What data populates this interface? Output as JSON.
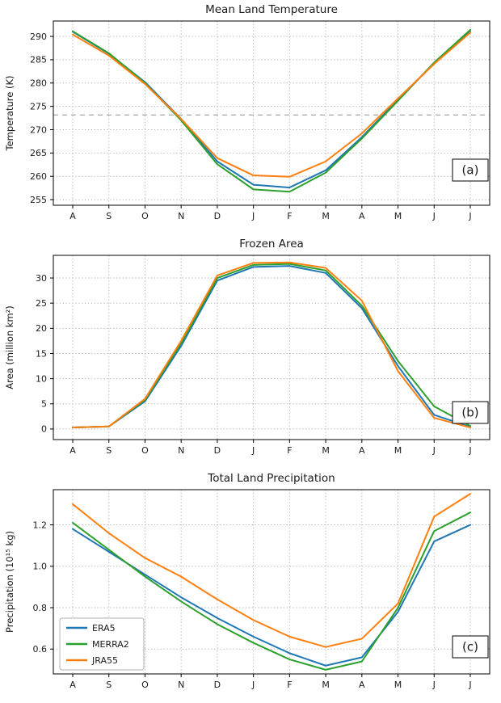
{
  "style": {
    "background": "#ffffff",
    "grid_color": "#b5b5b5",
    "axis_color": "#000000",
    "text_color": "#1a1a1a",
    "hline_color": "#b0b0b0",
    "legend_border": "#b0b0b0",
    "series_colors": {
      "ERA5": "#1f77b4",
      "MERRA2": "#2ca02c",
      "JRA55": "#ff7f0e"
    }
  },
  "chart_data": [
    {
      "type": "line",
      "title": "Mean Land Temperature",
      "ylabel": "Temperature (K)",
      "corner_label": "(a)",
      "categories": [
        "A",
        "S",
        "O",
        "N",
        "D",
        "J",
        "F",
        "M",
        "A",
        "M",
        "J",
        "J"
      ],
      "ylim": [
        253.8,
        293.3
      ],
      "yticks": [
        255,
        260,
        265,
        270,
        275,
        280,
        285,
        290
      ],
      "ytick_labels": [
        "255",
        "260",
        "265",
        "270",
        "275",
        "280",
        "285",
        "290"
      ],
      "hline": 273.15,
      "legend": false,
      "corner_raise": 30,
      "series": [
        {
          "name": "ERA5",
          "color": "#1f77b4",
          "values": [
            291.0,
            286.3,
            280.2,
            272.3,
            263.2,
            258.2,
            257.6,
            261.3,
            268.4,
            276.4,
            284.3,
            291.2
          ]
        },
        {
          "name": "MERRA2",
          "color": "#2ca02c",
          "values": [
            291.1,
            286.4,
            280.0,
            272.0,
            262.6,
            257.2,
            256.7,
            260.8,
            268.1,
            276.2,
            284.4,
            291.4
          ]
        },
        {
          "name": "JRA55",
          "color": "#ff7f0e",
          "values": [
            290.4,
            285.9,
            279.8,
            272.3,
            263.9,
            260.2,
            259.9,
            263.2,
            269.2,
            276.7,
            284.1,
            290.8
          ]
        }
      ]
    },
    {
      "type": "line",
      "title": "Frozen Area",
      "ylabel": "Area (million km²)",
      "corner_label": "(b)",
      "categories": [
        "A",
        "S",
        "O",
        "N",
        "D",
        "J",
        "F",
        "M",
        "A",
        "M",
        "J",
        "J"
      ],
      "ylim": [
        -2.1,
        34.5
      ],
      "yticks": [
        0,
        5,
        10,
        15,
        20,
        25,
        30
      ],
      "ytick_labels": [
        "0",
        "5",
        "10",
        "15",
        "20",
        "25",
        "30"
      ],
      "hline": null,
      "legend": false,
      "corner_raise": 20,
      "series": [
        {
          "name": "ERA5",
          "color": "#1f77b4",
          "values": [
            0.3,
            0.5,
            5.5,
            16.5,
            29.5,
            32.2,
            32.4,
            31.0,
            24.0,
            12.5,
            2.8,
            0.4
          ]
        },
        {
          "name": "MERRA2",
          "color": "#2ca02c",
          "values": [
            0.3,
            0.5,
            5.8,
            17.0,
            30.0,
            32.6,
            32.8,
            31.5,
            24.5,
            13.5,
            4.5,
            0.6
          ]
        },
        {
          "name": "JRA55",
          "color": "#ff7f0e",
          "values": [
            0.3,
            0.5,
            6.0,
            17.5,
            30.5,
            33.0,
            33.1,
            32.0,
            25.5,
            11.5,
            2.2,
            0.3
          ]
        }
      ]
    },
    {
      "type": "line",
      "title": "Total Land Precipitation",
      "ylabel": "Precipitation (10¹⁵ kg)",
      "corner_label": "(c)",
      "categories": [
        "A",
        "S",
        "O",
        "N",
        "D",
        "J",
        "F",
        "M",
        "A",
        "M",
        "J",
        "J"
      ],
      "ylim": [
        0.48,
        1.37
      ],
      "yticks": [
        0.6,
        0.8,
        1.0,
        1.2
      ],
      "ytick_labels": [
        "0.6",
        "0.8",
        "1.0",
        "1.2"
      ],
      "hline": null,
      "legend": true,
      "corner_raise": 20,
      "series": [
        {
          "name": "ERA5",
          "color": "#1f77b4",
          "values": [
            1.18,
            1.07,
            0.96,
            0.85,
            0.75,
            0.66,
            0.58,
            0.52,
            0.56,
            0.78,
            1.12,
            1.2
          ]
        },
        {
          "name": "MERRA2",
          "color": "#2ca02c",
          "values": [
            1.21,
            1.08,
            0.95,
            0.83,
            0.72,
            0.63,
            0.55,
            0.5,
            0.54,
            0.8,
            1.17,
            1.26
          ]
        },
        {
          "name": "JRA55",
          "color": "#ff7f0e",
          "values": [
            1.3,
            1.16,
            1.04,
            0.95,
            0.84,
            0.74,
            0.66,
            0.61,
            0.65,
            0.82,
            1.24,
            1.35
          ]
        }
      ]
    }
  ]
}
